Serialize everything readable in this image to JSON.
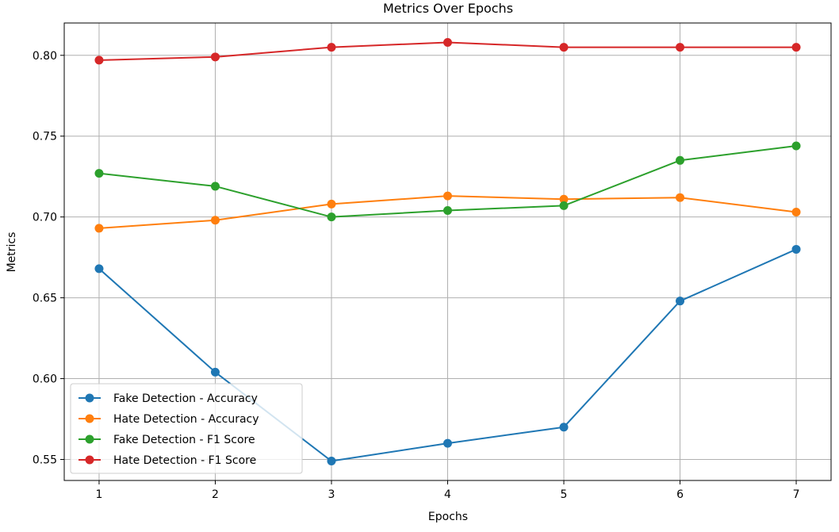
{
  "chart_data": {
    "type": "line",
    "title": "Metrics Over Epochs",
    "xlabel": "Epochs",
    "ylabel": "Metrics",
    "x": [
      1,
      2,
      3,
      4,
      5,
      6,
      7
    ],
    "xlim": [
      0.7,
      7.3
    ],
    "ylim": [
      0.537,
      0.82
    ],
    "xticks": [
      1,
      2,
      3,
      4,
      5,
      6,
      7
    ],
    "xtick_labels": [
      "1",
      "2",
      "3",
      "4",
      "5",
      "6",
      "7"
    ],
    "yticks": [
      0.55,
      0.6,
      0.65,
      0.7,
      0.75,
      0.8
    ],
    "ytick_labels": [
      "0.55",
      "0.60",
      "0.65",
      "0.70",
      "0.75",
      "0.80"
    ],
    "grid": true,
    "legend_position": "lower-left",
    "series": [
      {
        "name": "Fake Detection - Accuracy",
        "color": "#1f77b4",
        "values": [
          0.668,
          0.604,
          0.549,
          0.56,
          0.57,
          0.648,
          0.68
        ]
      },
      {
        "name": "Hate Detection - Accuracy",
        "color": "#ff7f0e",
        "values": [
          0.693,
          0.698,
          0.708,
          0.713,
          0.711,
          0.712,
          0.703
        ]
      },
      {
        "name": "Fake Detection - F1 Score",
        "color": "#2ca02c",
        "values": [
          0.727,
          0.719,
          0.7,
          0.704,
          0.707,
          0.735,
          0.744
        ]
      },
      {
        "name": "Hate Detection - F1 Score",
        "color": "#d62728",
        "values": [
          0.797,
          0.799,
          0.805,
          0.808,
          0.805,
          0.805,
          0.805
        ]
      }
    ]
  }
}
